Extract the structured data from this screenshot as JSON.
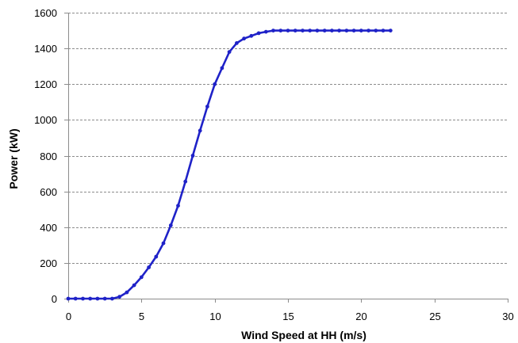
{
  "chart_data": {
    "type": "line",
    "title": "",
    "xlabel": "Wind Speed at HH (m/s)",
    "ylabel": "Power (kW)",
    "xlim": [
      0,
      30
    ],
    "ylim": [
      0,
      1600
    ],
    "xticks": [
      0,
      5,
      10,
      15,
      20,
      25,
      30
    ],
    "yticks": [
      0,
      200,
      400,
      600,
      800,
      1000,
      1200,
      1400,
      1600
    ],
    "grid": "horizontal dashed",
    "legend": "none",
    "series": [
      {
        "color": "#1f22c8",
        "marker": "circle",
        "x": [
          0,
          0.5,
          1,
          1.5,
          2,
          2.5,
          3,
          3.5,
          4,
          4.5,
          5,
          5.5,
          6,
          6.5,
          7,
          7.5,
          8,
          8.5,
          9,
          9.5,
          10,
          10.5,
          11,
          11.5,
          12,
          12.5,
          13,
          13.5,
          14,
          14.5,
          15,
          15.5,
          16,
          16.5,
          17,
          17.5,
          18,
          18.5,
          19,
          19.5,
          20,
          20.5,
          21,
          21.5,
          22
        ],
        "y": [
          0,
          0,
          0,
          0,
          0,
          0,
          0,
          10,
          35,
          75,
          120,
          175,
          235,
          310,
          410,
          520,
          655,
          800,
          940,
          1075,
          1200,
          1290,
          1380,
          1430,
          1455,
          1470,
          1485,
          1493,
          1500,
          1500,
          1500,
          1500,
          1500,
          1500,
          1500,
          1500,
          1500,
          1500,
          1500,
          1500,
          1500,
          1500,
          1500,
          1500,
          1500
        ]
      }
    ]
  }
}
